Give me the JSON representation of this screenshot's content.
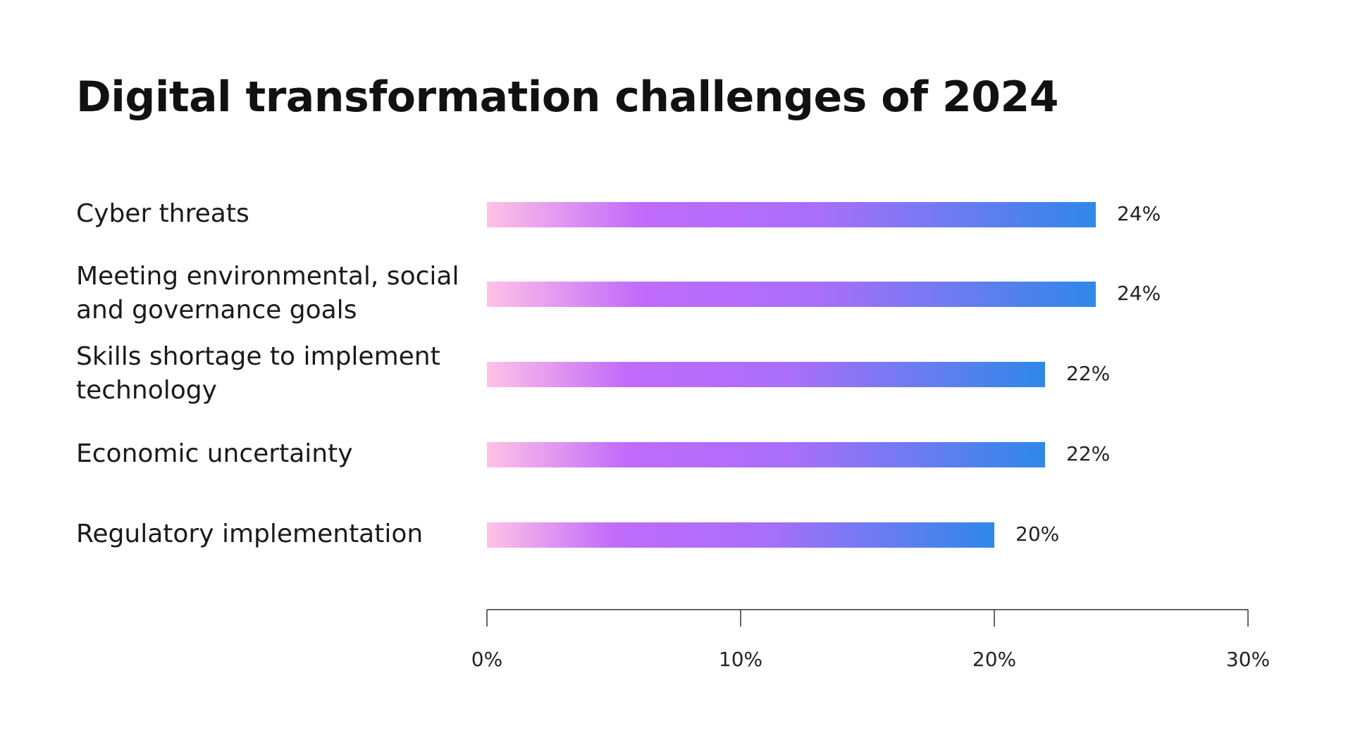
{
  "chart_data": {
    "type": "bar",
    "orientation": "horizontal",
    "title": "Digital transformation challenges of 2024",
    "categories": [
      "Cyber threats",
      "Meeting environmental, social and governance goals",
      "Skills shortage to implement technology",
      "Economic uncertainty",
      "Regulatory implementation"
    ],
    "category_lines": [
      [
        "Cyber threats"
      ],
      [
        "Meeting environmental, social",
        "and governance goals"
      ],
      [
        "Skills shortage to implement",
        "technology"
      ],
      [
        "Economic uncertainty"
      ],
      [
        "Regulatory implementation"
      ]
    ],
    "values": [
      24,
      24,
      22,
      22,
      20
    ],
    "value_labels": [
      "24%",
      "24%",
      "22%",
      "22%",
      "20%"
    ],
    "xlim": [
      0,
      30
    ],
    "x_ticks": [
      0,
      10,
      20,
      30
    ],
    "x_tick_labels": [
      "0%",
      "10%",
      "20%",
      "30%"
    ],
    "xlabel": "",
    "ylabel": "",
    "grid": false,
    "legend": "none",
    "bar_gradient": [
      "#ffc2e6",
      "#c06bfa",
      "#a86ffa",
      "#2e88e8"
    ]
  }
}
